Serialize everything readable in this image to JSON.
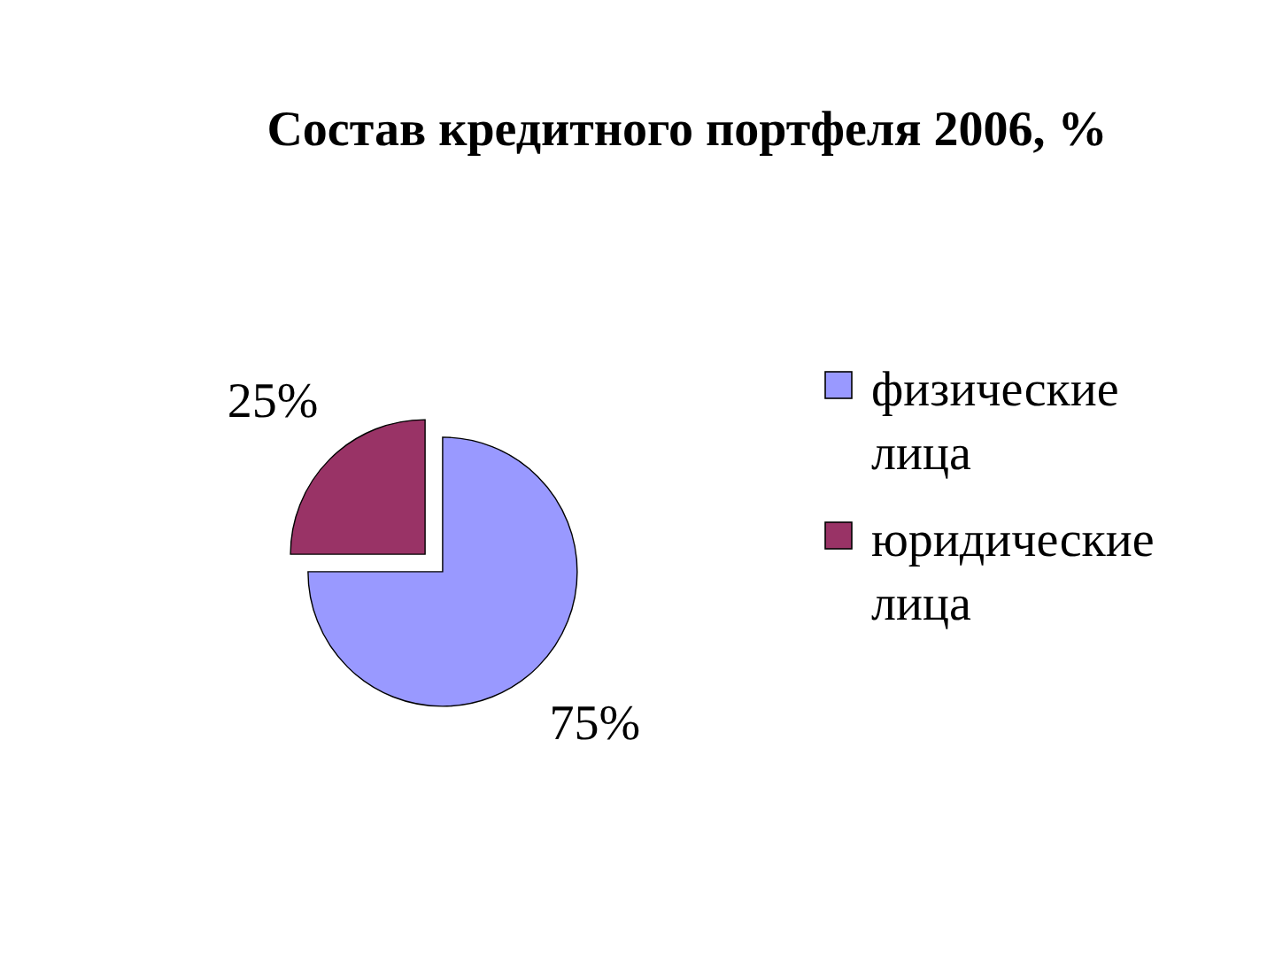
{
  "chart_data": {
    "type": "pie",
    "title": "Состав кредитного портфеля 2006, %",
    "categories": [
      "физические лица",
      "юридические лица"
    ],
    "values": [
      75,
      25
    ],
    "colors": [
      "#9999ff",
      "#993366"
    ],
    "value_labels": [
      "75%",
      "25%"
    ],
    "legend": "right"
  }
}
